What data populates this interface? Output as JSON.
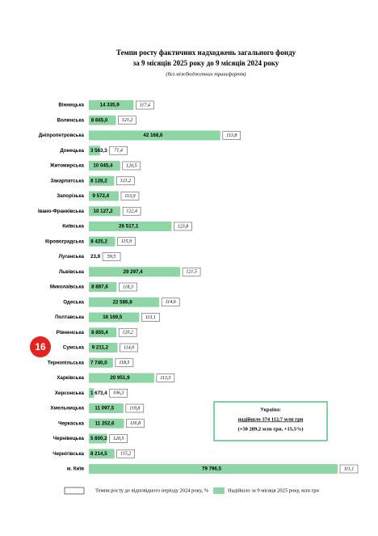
{
  "page_number": "16",
  "chart_data": {
    "type": "bar",
    "orientation": "horizontal",
    "title": [
      "Темпи росту фактичних надходжень загального фонду",
      "за 9 місяців 2025 року до 9 місяців 2024 року",
      "(без міжбюджетних трансфертів)"
    ],
    "categories": [
      "Вінницька",
      "Волинська",
      "Дніпропетровська",
      "Донецька",
      "Житомирська",
      "Закарпатська",
      "Запорізька",
      "Івано-Франківська",
      "Київська",
      "Кіровоградська",
      "Луганська",
      "Львівська",
      "Миколаївська",
      "Одеська",
      "Полтавська",
      "Рівненська",
      "Сумська",
      "Тернопільська",
      "Харківська",
      "Херсонська",
      "Хмельницька",
      "Черкаська",
      "Чернівецька",
      "Чернігівська",
      "м. Київ"
    ],
    "series": [
      {
        "name": "Надійшло за 9 місяця  2025 року, млн грн",
        "color": "#8fd6a6",
        "values": [
          14335.9,
          8665.0,
          42168.6,
          3563.3,
          10045.4,
          8128.2,
          9572.4,
          10127.2,
          26517.1,
          8425.2,
          23.8,
          29297.4,
          8887.6,
          22586.8,
          16169.5,
          8855.4,
          9211.2,
          7740.0,
          20951.9,
          1673.4,
          11097.5,
          11252.6,
          5800.2,
          8214.5,
          79796.5
        ],
        "value_labels": [
          "14 335,9",
          "8 665,0",
          "42 168,6",
          "3 563,3",
          "10 045,4",
          "8 128,2",
          "9 572,4",
          "10 127,2",
          "26 517,1",
          "8 425,2",
          "23,8",
          "29 297,4",
          "8 887,6",
          "22 586,8",
          "16 169,5",
          "8 855,4",
          "9 211,2",
          "7 740,0",
          "20 951,9",
          "1 673,4",
          "11 097,5",
          "11 252,6",
          "5 800,2",
          "8 214,5",
          "79 796,5"
        ]
      },
      {
        "name": "Темпи росту до відповідного періоду 2024 року, %",
        "color": "#ffffff",
        "values": [
          117.4,
          121.2,
          113.8,
          71.4,
          120.5,
          121.2,
          113.0,
          122.4,
          123.8,
          115.9,
          59.5,
          121.5,
          118.3,
          114.6,
          113.1,
          120.2,
          114.0,
          118.5,
          113.3,
          106.3,
          119.8,
          116.8,
          120.5,
          115.2,
          111.1
        ],
        "value_labels": [
          "117,4",
          "121,2",
          "113,8",
          "71,4",
          "120,5",
          "121,2",
          "113,0",
          "122,4",
          "123,8",
          "115,9",
          "59,5",
          "121,5",
          "118,3",
          "114,6",
          "113,1",
          "120,2",
          "114,0",
          "118,5",
          "113,3",
          "106,3",
          "119,8",
          "116,8",
          "120,5",
          "115,2",
          "111,1"
        ]
      }
    ],
    "annotation": [
      "Україна:",
      "надійшло 374 112,7 млн грн",
      "(+50 289,2 млн грн, +15,5%)"
    ]
  }
}
